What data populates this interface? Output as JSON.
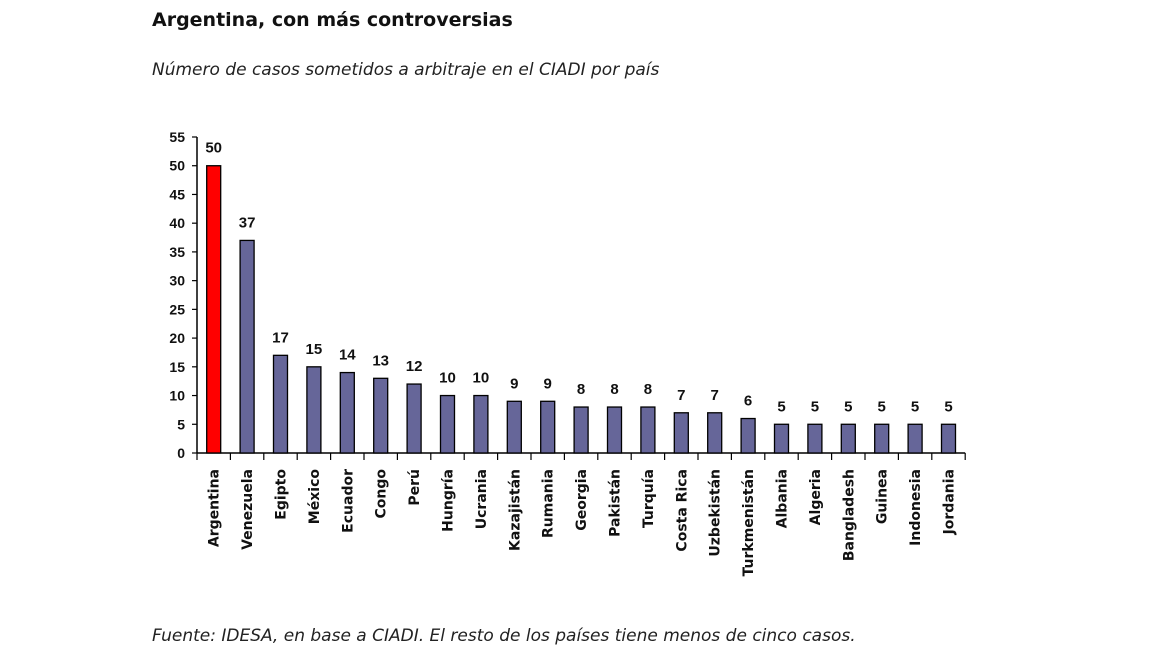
{
  "header": {
    "title": "Argentina, con más controversias",
    "subtitle": "Número de casos sometidos a arbitraje en el CIADI por país"
  },
  "footer": {
    "source": "Fuente: IDESA, en base a CIADI. El resto de los países tiene menos de cinco casos."
  },
  "colors": {
    "highlight": "#ff0000",
    "bar": "#666699",
    "axis": "#000000"
  },
  "chart_data": {
    "type": "bar",
    "title": "Argentina, con más controversias",
    "subtitle": "Número de casos sometidos a arbitraje en el CIADI por país",
    "xlabel": "",
    "ylabel": "",
    "ylim": [
      0,
      55
    ],
    "yticks": [
      0,
      5,
      10,
      15,
      20,
      25,
      30,
      35,
      40,
      45,
      50,
      55
    ],
    "grid": false,
    "legend": "none",
    "highlighted_category": "Argentina",
    "categories": [
      "Argentina",
      "Venezuela",
      "Egipto",
      "México",
      "Ecuador",
      "Congo",
      "Perú",
      "Hungría",
      "Ucrania",
      "Kazajistán",
      "Rumania",
      "Georgia",
      "Pakistán",
      "Turquía",
      "Costa Rica",
      "Uzbekistán",
      "Turkmenistán",
      "Albania",
      "Algeria",
      "Bangladesh",
      "Guinea",
      "Indonesia",
      "Jordania"
    ],
    "values": [
      50,
      37,
      17,
      15,
      14,
      13,
      12,
      10,
      10,
      9,
      9,
      8,
      8,
      8,
      7,
      7,
      6,
      5,
      5,
      5,
      5,
      5,
      5
    ],
    "data_labels": true,
    "source": "Fuente: IDESA, en base a CIADI. El resto de los países tiene menos de cinco casos."
  }
}
